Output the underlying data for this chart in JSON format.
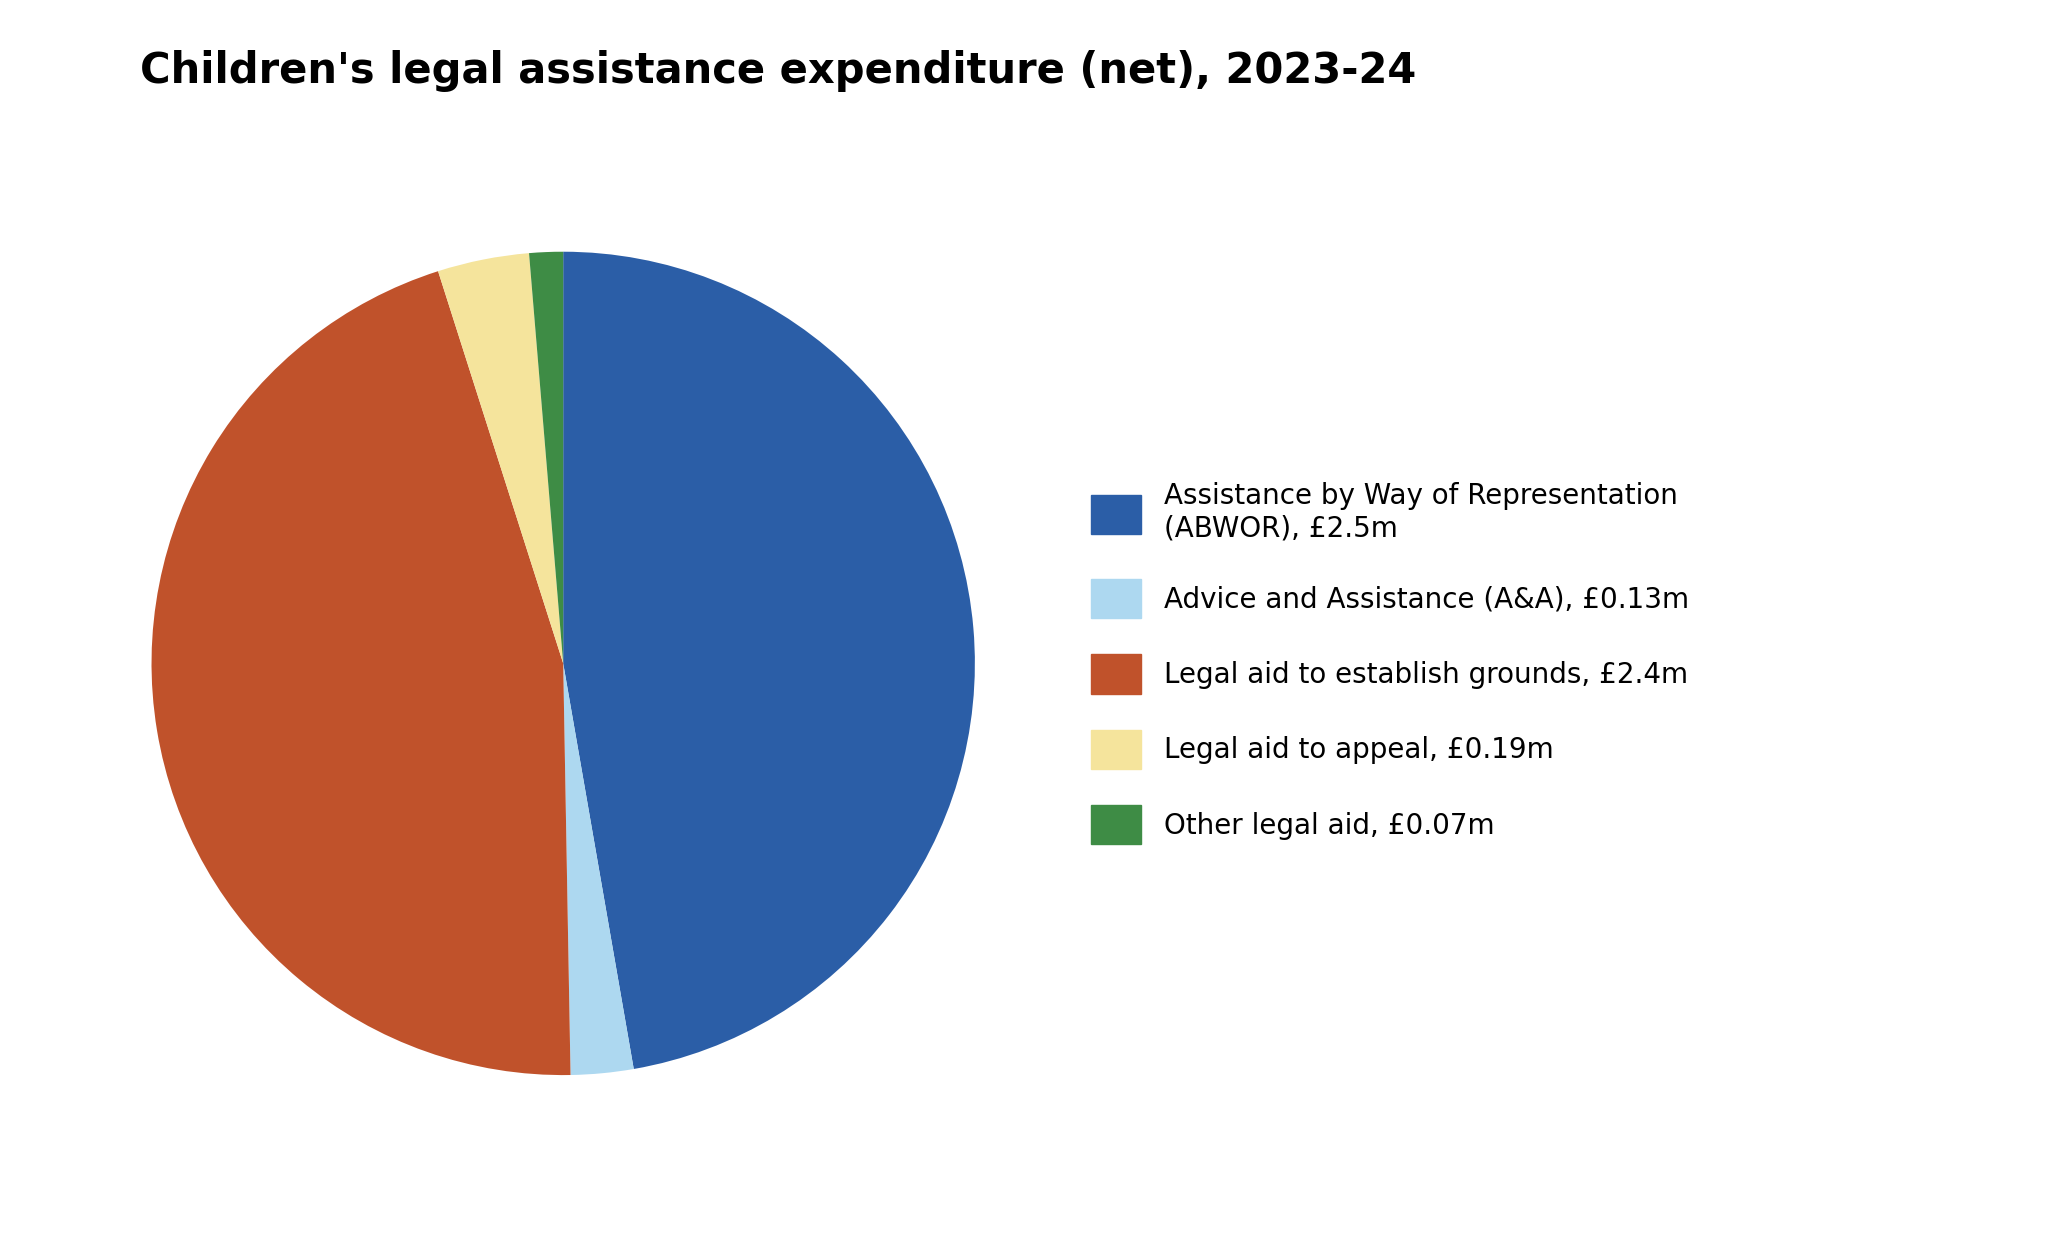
{
  "title": "Children's legal assistance expenditure (net), 2023-24",
  "title_fontsize": 30,
  "slices": [
    {
      "label": "Assistance by Way of Representation\n(ABWOR), £2.5m",
      "value": 2.5,
      "color": "#2B5EA7"
    },
    {
      "label": "Advice and Assistance (A&A), £0.13m",
      "value": 0.13,
      "color": "#ADD8F0"
    },
    {
      "label": "Legal aid to establish grounds, £2.4m",
      "value": 2.4,
      "color": "#C0522B"
    },
    {
      "label": "Legal aid to appeal, £0.19m",
      "value": 0.19,
      "color": "#F5E49C"
    },
    {
      "label": "Other legal aid, £0.07m",
      "value": 0.07,
      "color": "#3E8C45"
    }
  ],
  "background_color": "#FFFFFF",
  "legend_fontsize": 20,
  "legend_handlelength": 1.8,
  "legend_handleheight": 1.8,
  "legend_labelspacing": 1.3,
  "startangle": 90
}
